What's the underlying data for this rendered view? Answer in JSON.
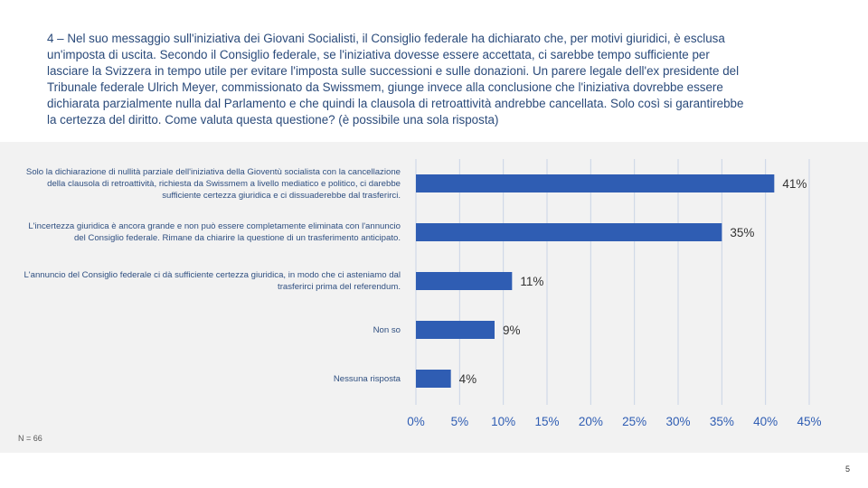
{
  "question": "4 – Nel suo messaggio sull'iniziativa dei Giovani Socialisti, il Consiglio federale ha dichiarato che, per motivi giuridici, è esclusa un'imposta di uscita. Secondo il Consiglio federale, se l'iniziativa dovesse essere accettata, ci sarebbe tempo sufficiente per lasciare la Svizzera in tempo utile per evitare l'imposta sulle successioni e sulle donazioni. Un parere legale dell'ex presidente del Tribunale federale Ulrich Meyer, commissionato da Swissmem, giunge invece alla conclusione che l'iniziativa dovrebbe essere dichiarata parzialmente nulla dal Parlamento e che quindi la clausola di retroattività andrebbe cancellata. Solo così si garantirebbe la certezza del diritto. Come valuta questa questione? (è possibile una sola risposta)",
  "sample_note": "N = 66",
  "page_number": "5",
  "colors": {
    "bar": "#2f5db3",
    "label": "#2f4f80",
    "grid": "#c9d4e6",
    "panel": "#f2f2f2"
  },
  "chart_data": {
    "type": "bar",
    "orientation": "horizontal",
    "categories": [
      "Solo la dichiarazione di nullità parziale dell'iniziativa della Gioventù socialista con la cancellazione della clausola di retroattività, richiesta da Swissmem a livello mediatico e politico, ci darebbe sufficiente certezza giuridica e ci dissuaderebbe dal trasferirci.",
      "L'incertezza giuridica è ancora grande e non può essere completamente eliminata con l'annuncio del Consiglio federale. Rimane da chiarire la questione di un trasferimento anticipato.",
      "L'annuncio del Consiglio federale ci dà sufficiente certezza giuridica, in modo che ci asteniamo dal trasferirci prima del referendum.",
      "Non so",
      "Nessuna risposta"
    ],
    "values": [
      41,
      35,
      11,
      9,
      4
    ],
    "data_labels": [
      "41%",
      "35%",
      "11%",
      "9%",
      "4%"
    ],
    "xlim": [
      0,
      45
    ],
    "ticks": [
      "0%",
      "5%",
      "10%",
      "15%",
      "20%",
      "25%",
      "30%",
      "35%",
      "40%",
      "45%"
    ],
    "grid": true
  }
}
